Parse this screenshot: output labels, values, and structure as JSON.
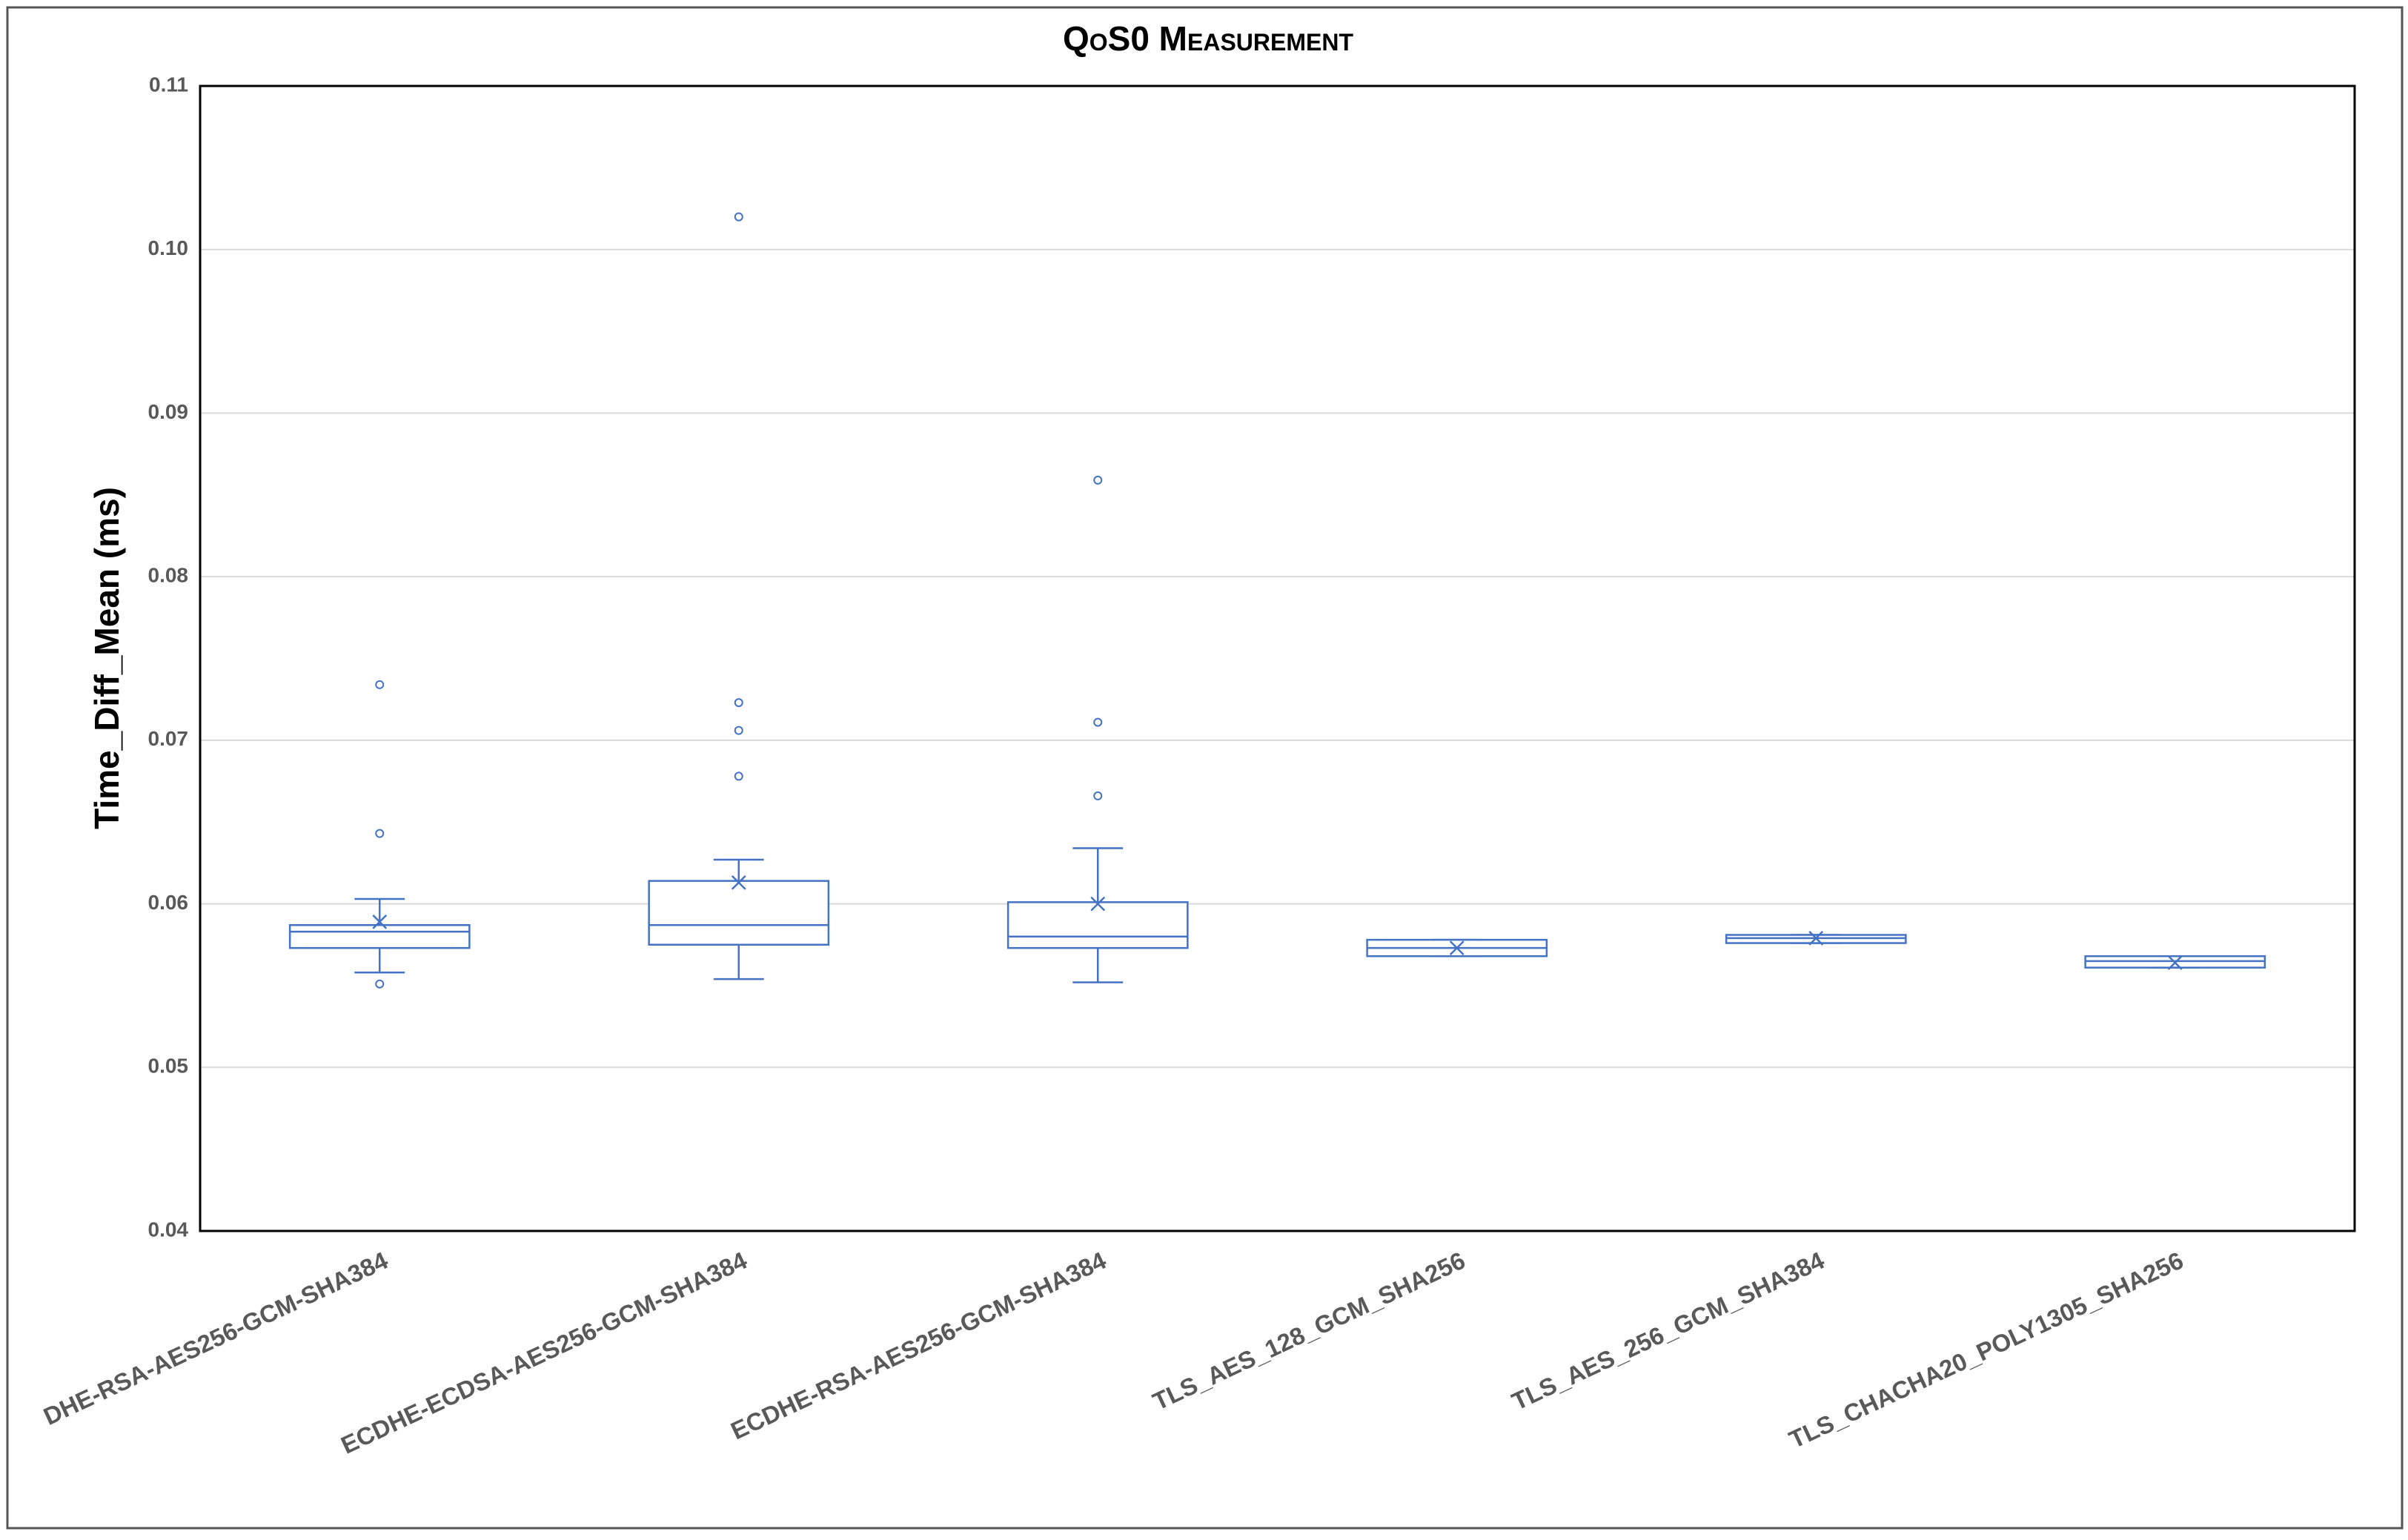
{
  "chart_data": {
    "type": "box",
    "title": "QoS0 Measurement",
    "y_label": "Time_Diff_Mean (ms)",
    "color": "#4472c4",
    "grid": true,
    "ylim": [
      0.04,
      0.11
    ],
    "yticks": [
      0.04,
      0.05,
      0.06,
      0.07,
      0.08,
      0.09,
      {
        "value": 0.1,
        "label": "0.10"
      },
      0.11
    ],
    "categories": [
      "DHE-RSA-AES256-GCM-SHA384",
      "ECDHE-ECDSA-AES256-GCM-SHA384",
      "ECDHE-RSA-AES256-GCM-SHA384",
      "TLS_AES_128_GCM_SHA256",
      "TLS_AES_256_GCM_SHA384",
      "TLS_CHACHA20_POLY1305_SHA256"
    ],
    "boxes": [
      {
        "whisker_low": 0.0558,
        "q1": 0.0573,
        "median": 0.0583,
        "q3": 0.0587,
        "whisker_high": 0.0603,
        "mean": 0.0589,
        "outliers": [
          0.0734,
          0.0643,
          0.0551
        ]
      },
      {
        "whisker_low": 0.0554,
        "q1": 0.0575,
        "median": 0.0587,
        "q3": 0.0614,
        "whisker_high": 0.0627,
        "mean": 0.0613,
        "outliers": [
          0.102,
          0.0723,
          0.0706,
          0.0678
        ]
      },
      {
        "whisker_low": 0.0552,
        "q1": 0.0573,
        "median": 0.058,
        "q3": 0.0601,
        "whisker_high": 0.0634,
        "mean": 0.06,
        "outliers": [
          0.0859,
          0.0711,
          0.0666
        ]
      },
      {
        "whisker_low": 0.0568,
        "q1": 0.0568,
        "median": 0.0573,
        "q3": 0.0578,
        "whisker_high": 0.0578,
        "mean": 0.0573,
        "outliers": []
      },
      {
        "whisker_low": 0.0576,
        "q1": 0.0576,
        "median": 0.0579,
        "q3": 0.0581,
        "whisker_high": 0.0581,
        "mean": 0.0579,
        "outliers": []
      },
      {
        "whisker_low": 0.0561,
        "q1": 0.0561,
        "median": 0.0565,
        "q3": 0.0568,
        "whisker_high": 0.0568,
        "mean": 0.0564,
        "outliers": []
      }
    ]
  }
}
